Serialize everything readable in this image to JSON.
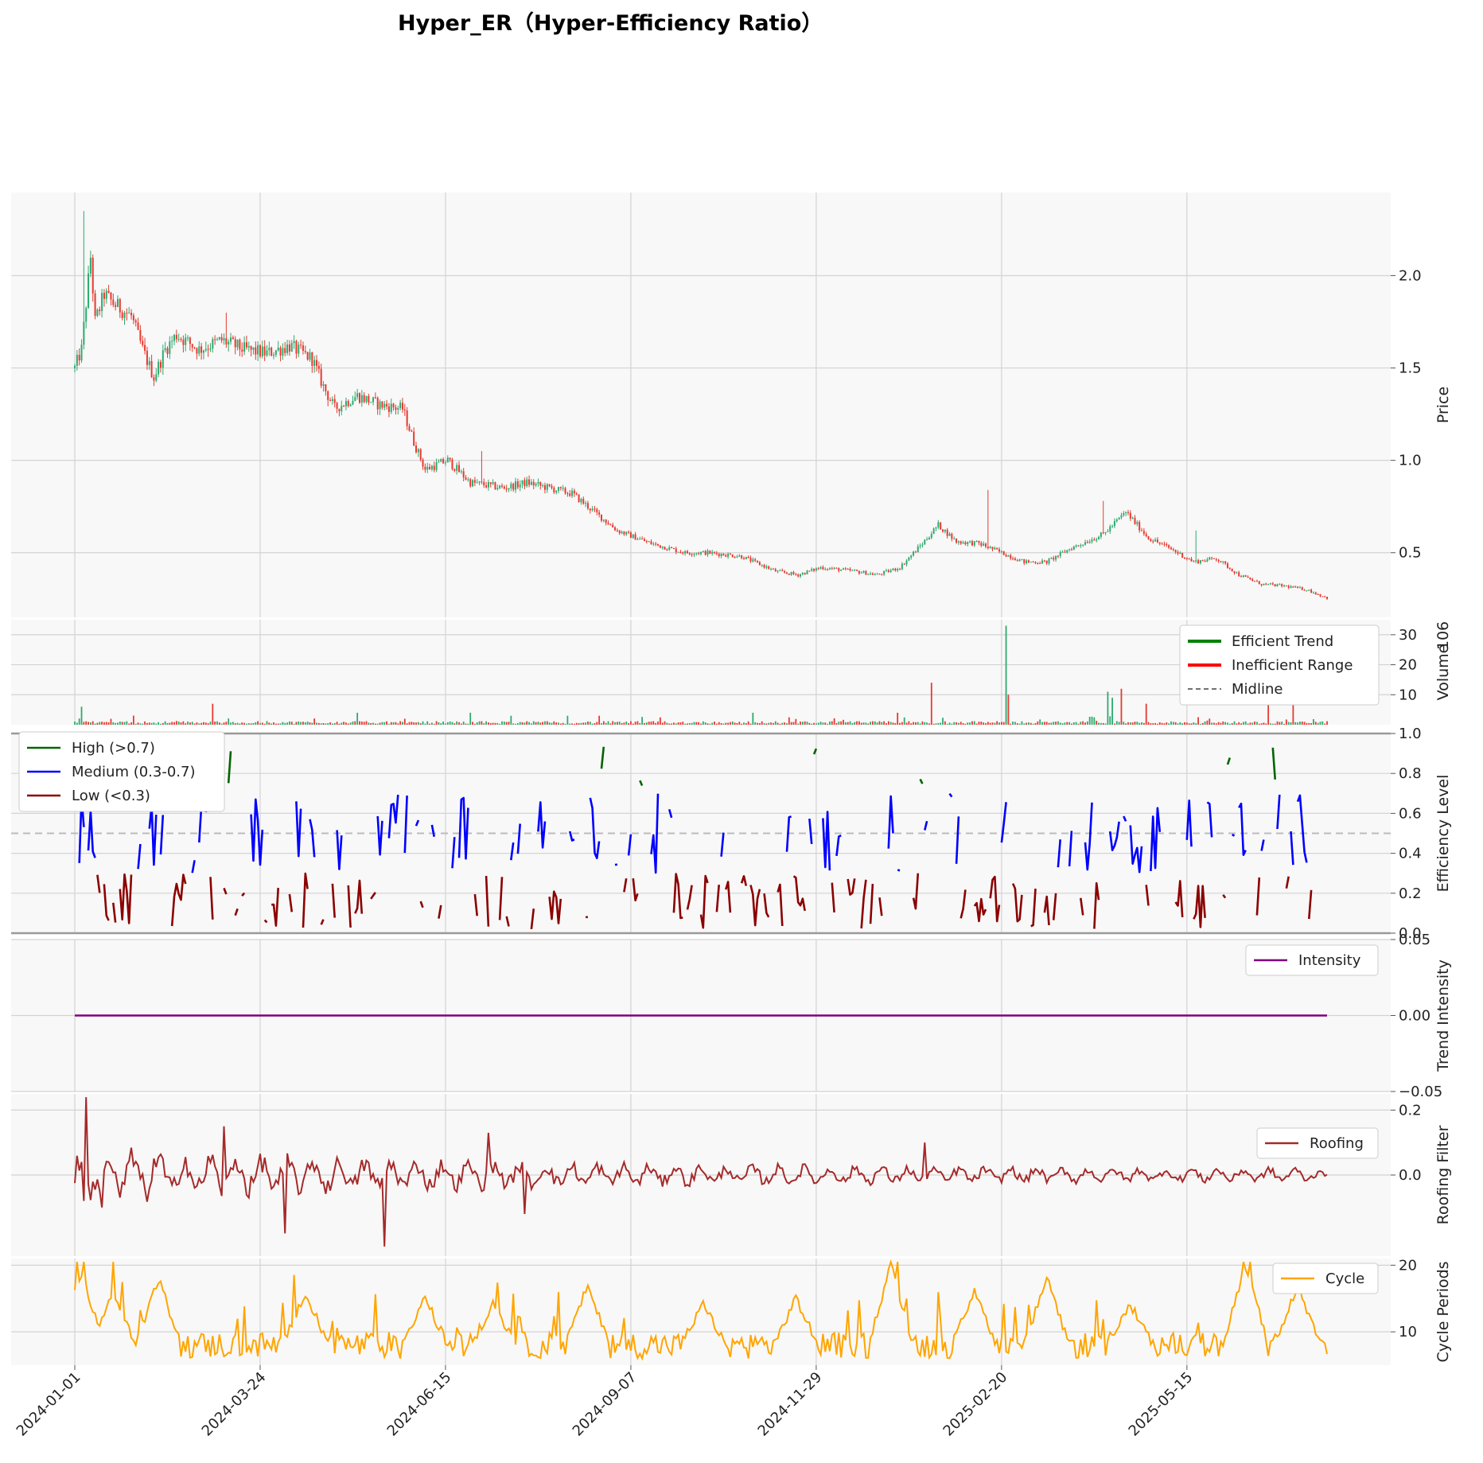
{
  "title": "Hyper_ER（Hyper-Efficiency Ratio）",
  "x_dates": [
    "2024-01-01",
    "2024-03-24",
    "2024-06-15",
    "2024-09-07",
    "2024-11-29",
    "2025-02-20",
    "2025-05-15"
  ],
  "n_points": 555,
  "colors": {
    "up": "#2eaa6e",
    "down": "#e8392f",
    "high": "#006400",
    "medium": "#0000ff",
    "low": "#8b0000",
    "intensity": "#800080",
    "roofing": "#a52a2a",
    "cycle": "#ffa500",
    "grid": "#d3d3d3",
    "panel": "#f8f8f8"
  },
  "chart_data": [
    {
      "id": "price",
      "type": "candlestick",
      "ylabel": "Price",
      "ylim": [
        0.15,
        2.45
      ],
      "yticks": [
        0.5,
        1.0,
        1.5,
        2.0
      ],
      "ytick_labels": [
        "0.5",
        "1.0",
        "1.5",
        "2.0"
      ],
      "keypoints": [
        [
          0,
          1.5
        ],
        [
          3,
          1.6
        ],
        [
          5,
          1.85
        ],
        [
          7,
          2.1
        ],
        [
          9,
          1.75
        ],
        [
          13,
          1.9
        ],
        [
          17,
          1.85
        ],
        [
          25,
          1.78
        ],
        [
          30,
          1.6
        ],
        [
          35,
          1.45
        ],
        [
          40,
          1.6
        ],
        [
          45,
          1.68
        ],
        [
          55,
          1.6
        ],
        [
          65,
          1.65
        ],
        [
          75,
          1.6
        ],
        [
          85,
          1.58
        ],
        [
          95,
          1.62
        ],
        [
          105,
          1.55
        ],
        [
          110,
          1.4
        ],
        [
          115,
          1.28
        ],
        [
          125,
          1.35
        ],
        [
          135,
          1.3
        ],
        [
          145,
          1.28
        ],
        [
          150,
          1.1
        ],
        [
          155,
          0.95
        ],
        [
          165,
          1.0
        ],
        [
          175,
          0.88
        ],
        [
          190,
          0.85
        ],
        [
          200,
          0.88
        ],
        [
          210,
          0.85
        ],
        [
          220,
          0.82
        ],
        [
          230,
          0.72
        ],
        [
          240,
          0.62
        ],
        [
          255,
          0.55
        ],
        [
          270,
          0.5
        ],
        [
          280,
          0.5
        ],
        [
          295,
          0.48
        ],
        [
          310,
          0.4
        ],
        [
          320,
          0.38
        ],
        [
          330,
          0.42
        ],
        [
          345,
          0.4
        ],
        [
          355,
          0.38
        ],
        [
          365,
          0.42
        ],
        [
          375,
          0.55
        ],
        [
          382,
          0.65
        ],
        [
          390,
          0.56
        ],
        [
          400,
          0.55
        ],
        [
          420,
          0.45
        ],
        [
          430,
          0.45
        ],
        [
          440,
          0.52
        ],
        [
          455,
          0.6
        ],
        [
          465,
          0.72
        ],
        [
          475,
          0.58
        ],
        [
          485,
          0.52
        ],
        [
          495,
          0.45
        ],
        [
          505,
          0.47
        ],
        [
          515,
          0.38
        ],
        [
          525,
          0.33
        ],
        [
          535,
          0.32
        ],
        [
          545,
          0.3
        ],
        [
          555,
          0.25
        ]
      ],
      "spikes": [
        [
          4,
          2.35
        ],
        [
          67,
          1.8
        ],
        [
          113,
          1.22
        ],
        [
          143,
          1.25
        ],
        [
          180,
          1.05
        ],
        [
          404,
          0.84
        ],
        [
          455,
          0.78
        ],
        [
          496,
          0.62
        ]
      ]
    },
    {
      "id": "volume",
      "type": "bar",
      "ylabel": "Volume",
      "y_scale_label": "10^6",
      "ylim": [
        0,
        35
      ],
      "yticks": [
        10,
        20,
        30
      ],
      "ytick_labels": [
        "10",
        "20",
        "30"
      ],
      "spikes": [
        [
          4,
          6
        ],
        [
          66,
          7
        ],
        [
          136,
          4
        ],
        [
          190,
          4
        ],
        [
          251,
          3
        ],
        [
          325,
          4
        ],
        [
          394,
          4
        ],
        [
          410,
          14
        ],
        [
          446,
          33
        ],
        [
          447,
          10
        ],
        [
          495,
          11
        ],
        [
          497,
          9
        ],
        [
          501,
          12
        ],
        [
          513,
          7
        ],
        [
          571,
          14
        ],
        [
          583,
          7
        ]
      ]
    },
    {
      "id": "efficiency",
      "type": "line",
      "ylabel": "Efficiency Level",
      "ylim": [
        0,
        1.0
      ],
      "yticks": [
        0,
        0.2,
        0.4,
        0.6,
        0.8,
        1.0
      ],
      "ytick_labels": [
        "0.0",
        "0.2",
        "0.4",
        "0.6",
        "0.8",
        "1.0"
      ],
      "midline": 0.5,
      "series": [
        {
          "name": "High (>0.7)",
          "range": [
            0.7,
            1.0
          ]
        },
        {
          "name": "Medium (0.3-0.7)",
          "range": [
            0.3,
            0.7
          ]
        },
        {
          "name": "Low (<0.3)",
          "range": [
            0,
            0.3
          ]
        }
      ]
    },
    {
      "id": "intensity",
      "type": "line",
      "ylabel": "Trend Intensity",
      "ylim": [
        -0.05,
        0.05
      ],
      "yticks": [
        -0.05,
        0.0,
        0.05
      ],
      "ytick_labels": [
        "−0.05",
        "0.00",
        "0.05"
      ],
      "series": [
        {
          "name": "Intensity",
          "value": 0.0
        }
      ]
    },
    {
      "id": "roofing",
      "type": "line",
      "ylabel": "Roofing Filter",
      "ylim": [
        -0.25,
        0.25
      ],
      "yticks": [
        0.0,
        0.2
      ],
      "ytick_labels": [
        "0.0",
        "0.2"
      ],
      "series": [
        {
          "name": "Roofing"
        }
      ],
      "spikes": [
        [
          5,
          0.24
        ],
        [
          4,
          -0.08
        ],
        [
          13,
          -0.1
        ],
        [
          71,
          0.15
        ],
        [
          101,
          -0.18
        ],
        [
          148,
          -0.22
        ],
        [
          198,
          0.13
        ],
        [
          215,
          -0.12
        ],
        [
          407,
          0.1
        ]
      ]
    },
    {
      "id": "cycle",
      "type": "line",
      "ylabel": "Cycle Periods",
      "ylim": [
        5,
        21
      ],
      "yticks": [
        10,
        20
      ],
      "ytick_labels": [
        "10",
        "20"
      ],
      "series": [
        {
          "name": "Cycle"
        }
      ],
      "peaks": [
        [
          3,
          19
        ],
        [
          18,
          16
        ],
        [
          40,
          18
        ],
        [
          110,
          16
        ],
        [
          168,
          15
        ],
        [
          200,
          14
        ],
        [
          245,
          17
        ],
        [
          300,
          14
        ],
        [
          345,
          15
        ],
        [
          390,
          20
        ],
        [
          430,
          16
        ],
        [
          465,
          18
        ],
        [
          505,
          14
        ],
        [
          560,
          20
        ],
        [
          585,
          17
        ]
      ]
    }
  ],
  "legends": {
    "volume": [
      "Efficient Trend",
      "Inefficient Range",
      "Midline"
    ],
    "efficiency": [
      "High (>0.7)",
      "Medium (0.3-0.7)",
      "Low (<0.3)"
    ],
    "intensity": [
      "Intensity"
    ],
    "roofing": [
      "Roofing"
    ],
    "cycle": [
      "Cycle"
    ]
  }
}
